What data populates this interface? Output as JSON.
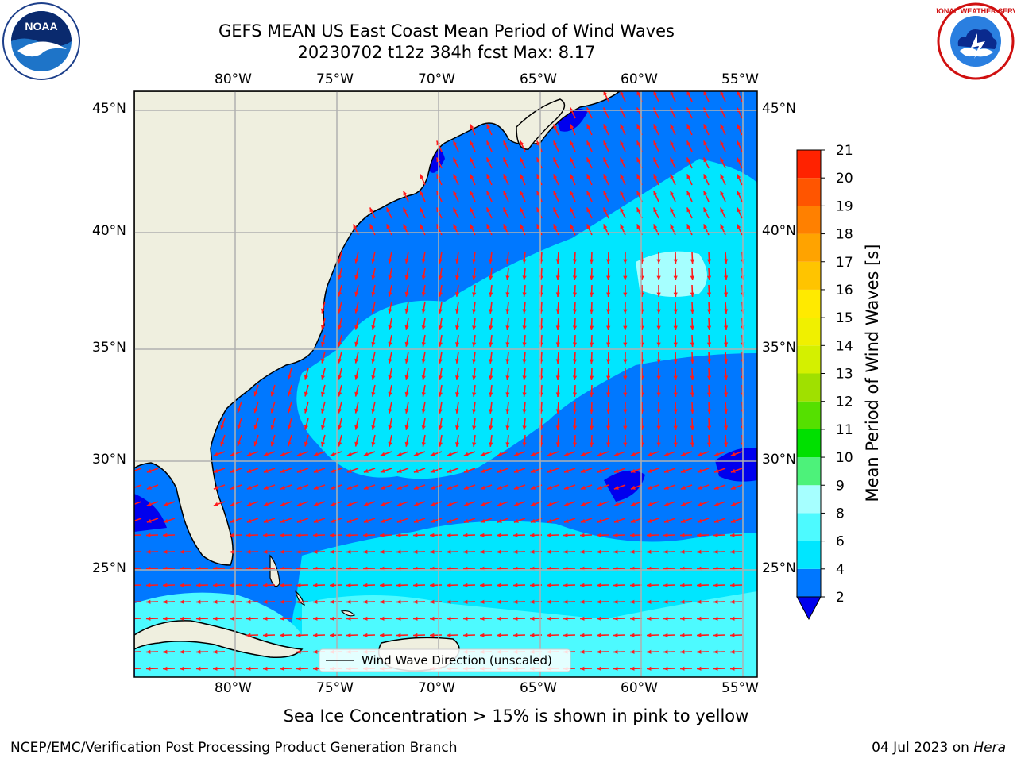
{
  "header": {
    "title_line1": "GEFS MEAN US East Coast Mean Period of Wind Waves",
    "title_line2": "20230702 t12z 384h fcst   Max: 8.17"
  },
  "logos": {
    "left": "NOAA",
    "right": "NATIONAL WEATHER SERVICE"
  },
  "map": {
    "lon_labels": [
      "80°W",
      "75°W",
      "70°W",
      "65°W",
      "60°W",
      "55°W"
    ],
    "lat_labels": [
      "45°N",
      "40°N",
      "35°N",
      "30°N",
      "25°N"
    ],
    "legend_label": "Wind Wave Direction (unscaled)"
  },
  "colorbar": {
    "label": "Mean Period of Wind Waves [s]",
    "ticks": [
      "2",
      "4",
      "6",
      "8",
      "9",
      "10",
      "11",
      "12",
      "13",
      "14",
      "15",
      "16",
      "17",
      "18",
      "19",
      "20",
      "21"
    ],
    "colors": [
      "#0077ff",
      "#00e6ff",
      "#4dfaff",
      "#a6ffff",
      "#4df27a",
      "#00e000",
      "#55e000",
      "#a0e000",
      "#d4f000",
      "#f0f000",
      "#ffea00",
      "#ffc400",
      "#ffa300",
      "#ff8000",
      "#ff5500",
      "#ff2200",
      "#ff0000"
    ],
    "extend_color": "#0000ee"
  },
  "note": "Sea Ice Concentration > 15% is shown in pink to yellow",
  "footer": {
    "left": "NCEP/EMC/Verification Post Processing Product Generation Branch",
    "right_prefix": "04 Jul 2023 on ",
    "right_machine": "Hera"
  }
}
